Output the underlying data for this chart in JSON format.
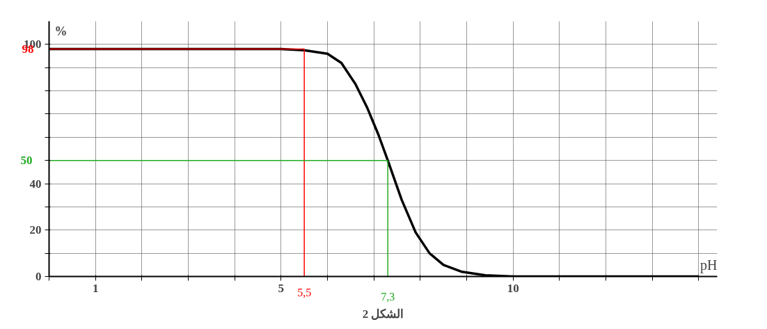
{
  "chart_data": {
    "type": "line",
    "xlabel": "pH",
    "ylabel": "%",
    "annotations": [
      "الشكل 2"
    ],
    "x": [
      0,
      5,
      5.5,
      6.0,
      6.3,
      6.6,
      6.85,
      7.1,
      7.3,
      7.6,
      7.9,
      8.2,
      8.5,
      8.9,
      9.4,
      10,
      14
    ],
    "series": [
      {
        "color": "#000000",
        "values": [
          98,
          98,
          97.5,
          96,
          92,
          83,
          73,
          61,
          50,
          33,
          19,
          10,
          5,
          2,
          0.5,
          0,
          0
        ]
      }
    ],
    "xlim": [
      0,
      14.4
    ],
    "ylim": [
      0,
      110
    ],
    "xticks": [
      {
        "value": 0,
        "label": null
      },
      1,
      {
        "value": 2,
        "label": null
      },
      {
        "value": 3,
        "label": null
      },
      {
        "value": 4,
        "label": null
      },
      5,
      {
        "value": 6,
        "label": null
      },
      {
        "value": 7,
        "label": null
      },
      {
        "value": 8,
        "label": null
      },
      {
        "value": 9,
        "label": null
      },
      10,
      {
        "value": 11,
        "label": null
      },
      {
        "value": 12,
        "label": null
      },
      {
        "value": 13,
        "label": null
      },
      {
        "value": 14,
        "label": null
      }
    ],
    "yticks": [
      0,
      {
        "value": 10,
        "label": null
      },
      20,
      {
        "value": 30,
        "label": null
      },
      40,
      {
        "value": 50,
        "label": null
      },
      {
        "value": 60,
        "label": null
      },
      {
        "value": 70,
        "label": null
      },
      {
        "value": 80,
        "label": null
      },
      {
        "value": 90,
        "label": null
      },
      100
    ],
    "ref_lines": [
      {
        "axis": "y",
        "value": 98,
        "label": "98",
        "color": "#ff0000"
      },
      {
        "axis": "x",
        "value": 5.5,
        "label": "5,5",
        "color": "#ff0000"
      },
      {
        "axis": "y",
        "value": 50,
        "label": "50",
        "color": "#22aa22"
      },
      {
        "axis": "x",
        "value": 7.3,
        "label": "7,3",
        "color": "#22aa22"
      }
    ],
    "grid": true,
    "marker": "none",
    "line_style": "solid"
  }
}
